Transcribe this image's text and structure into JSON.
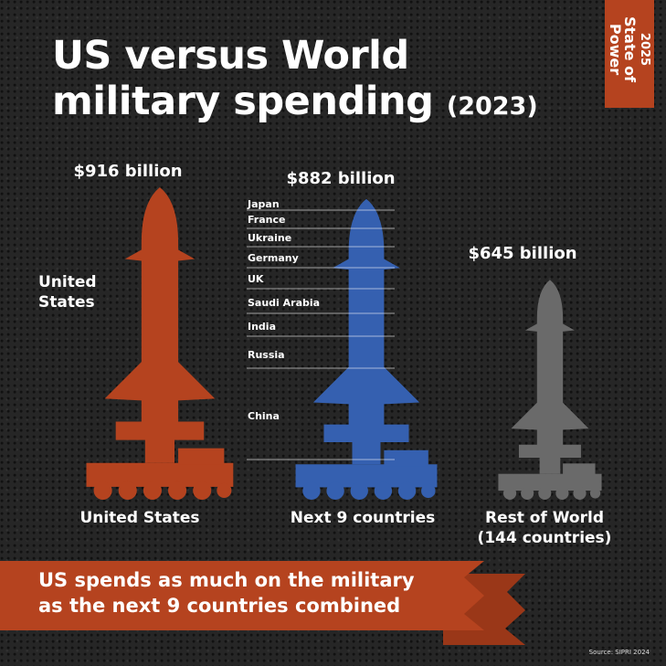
{
  "title": {
    "line1": "US versus World",
    "line2": "military spending",
    "year": "(2023)"
  },
  "badge": {
    "year": "2025",
    "line1": "State of",
    "line2": "Power"
  },
  "chart_data": {
    "type": "bar",
    "title": "US versus World military spending (2023)",
    "unit": "billion USD",
    "categories": [
      "United States",
      "Next 9 countries",
      "Rest of World (144 countries)"
    ],
    "category_labels": [
      [
        "United States"
      ],
      [
        "Next 9 countries"
      ],
      [
        "Rest of World",
        "(144 countries)"
      ]
    ],
    "values": [
      916,
      882,
      645
    ],
    "value_labels": [
      "$916 billion",
      "$882 billion",
      "$645 billion"
    ],
    "side_label": [
      "United",
      "States"
    ],
    "colors": [
      "#b5431f",
      "#3560b0",
      "#6a6a6a"
    ],
    "stack_order_top_to_bottom": [
      "Japan",
      "France",
      "Ukraine",
      "Germany",
      "UK",
      "Saudi Arabia",
      "India",
      "Russia",
      "China"
    ]
  },
  "banner": {
    "line1": "US spends as much on the military",
    "line2": "as the next 9 countries combined"
  },
  "source": "Source: SIPRI 2024"
}
